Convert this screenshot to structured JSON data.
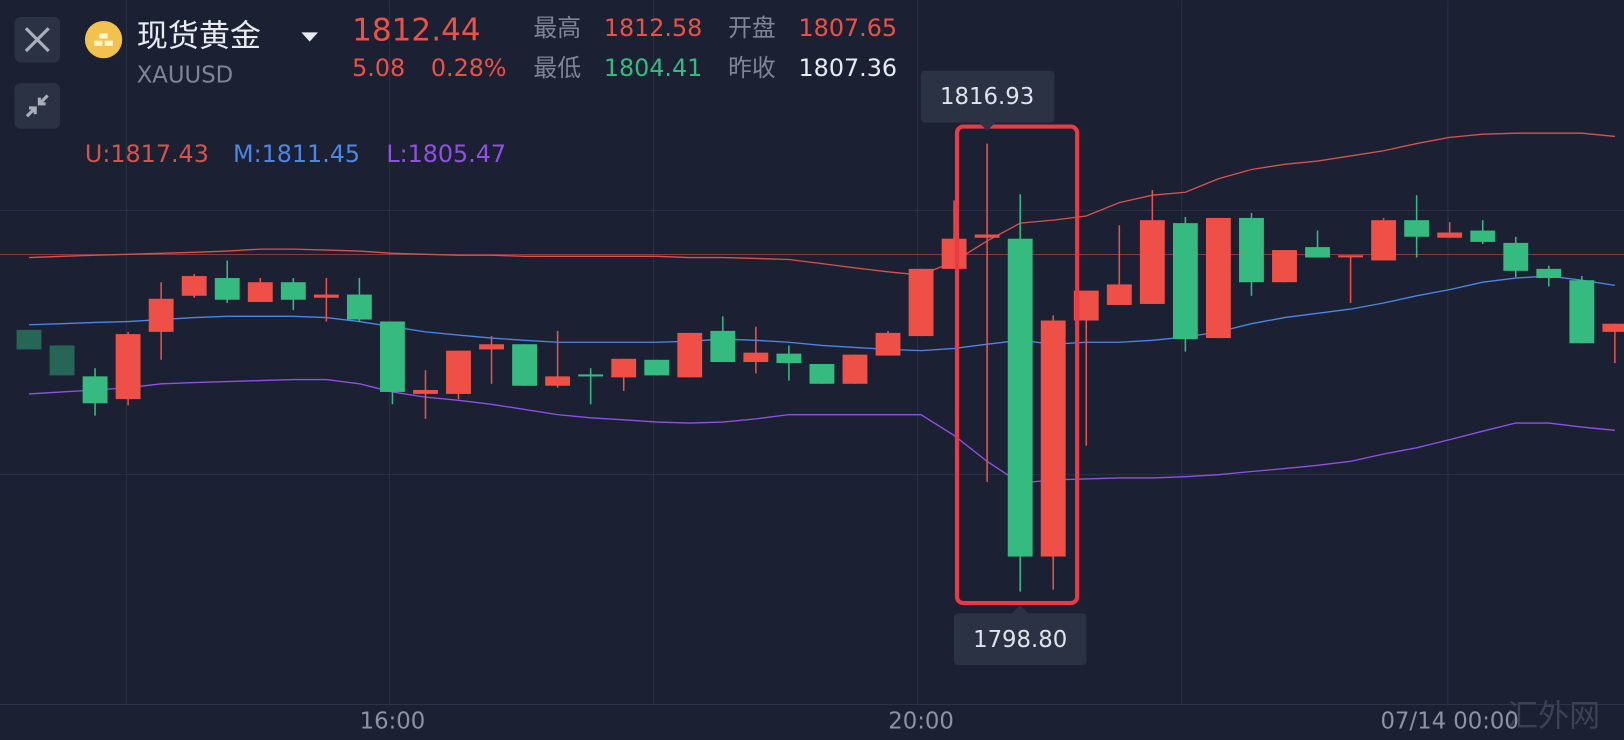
{
  "header": {
    "title": "现货黄金",
    "symbol": "XAUUSD",
    "price": 1812.44,
    "change": 5.08,
    "change_pct": "0.28%",
    "stats": [
      {
        "label": "最高",
        "value": 1812.58
      },
      {
        "label": "开盘",
        "value": 1807.65
      },
      {
        "label": "最低",
        "value": 1804.41
      },
      {
        "label": "昨收",
        "value": 1807.36
      }
    ]
  },
  "chart_data": {
    "type": "candlestick",
    "categories": [
      null,
      null,
      null,
      null,
      null,
      null,
      null,
      null,
      null,
      null,
      null,
      "16:00",
      null,
      null,
      null,
      null,
      null,
      null,
      null,
      null,
      null,
      null,
      null,
      null,
      null,
      null,
      null,
      "20:00",
      null,
      null,
      null,
      null,
      null,
      null,
      null,
      null,
      null,
      null,
      null,
      null,
      null,
      null,
      null,
      "07/14 00:00",
      null,
      null,
      null,
      null,
      null
    ],
    "open": [
      1809.39,
      1808.76,
      1807.51,
      1806.59,
      1809.31,
      1810.77,
      1811.49,
      1810.52,
      1811.32,
      1810.69,
      1810.82,
      1809.73,
      1806.8,
      1806.8,
      1808.6,
      1808.81,
      1807.13,
      1807.59,
      1807.47,
      1808.18,
      1807.47,
      1809.35,
      1808.09,
      1808.43,
      1808.01,
      1807.21,
      1808.35,
      1809.14,
      1811.86,
      1813.12,
      1813.08,
      1800.22,
      1809.77,
      1810.4,
      1810.44,
      1813.71,
      1809.06,
      1813.92,
      1811.32,
      1812.74,
      1812.37,
      1812.2,
      1813.83,
      1813.12,
      1813.41,
      1812.91,
      1811.86,
      1811.4,
      1809.31
    ],
    "high": [
      1809.39,
      1808.76,
      1807.84,
      1809.31,
      1811.32,
      1811.65,
      1812.2,
      1811.49,
      1811.49,
      1811.49,
      1811.49,
      1809.73,
      1807.76,
      1808.55,
      1809.14,
      1808.81,
      1809.35,
      1807.84,
      1808.22,
      1808.18,
      1809.27,
      1809.94,
      1809.52,
      1808.76,
      1808.01,
      1808.39,
      1809.35,
      1811.86,
      1814.63,
      1816.93,
      1814.88,
      1809.98,
      1810.98,
      1813.62,
      1815.05,
      1813.96,
      1813.92,
      1814.12,
      1812.62,
      1813.41,
      1812.41,
      1813.92,
      1814.84,
      1813.75,
      1813.83,
      1813.16,
      1811.99,
      1811.57,
      1809.64
    ],
    "low": [
      1808.6,
      1807.55,
      1805.92,
      1806.34,
      1808.18,
      1810.69,
      1810.48,
      1810.52,
      1810.19,
      1809.73,
      1809.73,
      1806.38,
      1805.79,
      1806.59,
      1807.21,
      1807.13,
      1807.05,
      1806.38,
      1806.92,
      1807.55,
      1807.47,
      1808.09,
      1807.63,
      1807.34,
      1807.21,
      1807.21,
      1808.35,
      1809.14,
      1811.86,
      1803.24,
      1798.8,
      1798.88,
      1804.7,
      1810.4,
      1810.44,
      1808.51,
      1809.06,
      1810.77,
      1811.32,
      1812.32,
      1810.48,
      1812.2,
      1812.32,
      1813.12,
      1812.87,
      1811.53,
      1811.15,
      1808.85,
      1808.05
    ],
    "close": [
      1808.6,
      1807.55,
      1806.42,
      1809.22,
      1810.65,
      1811.57,
      1810.61,
      1811.32,
      1810.61,
      1810.82,
      1809.81,
      1806.88,
      1806.96,
      1808.55,
      1808.81,
      1807.13,
      1807.51,
      1807.51,
      1808.22,
      1807.55,
      1809.27,
      1808.09,
      1808.47,
      1808.05,
      1807.21,
      1808.39,
      1809.27,
      1811.86,
      1813.08,
      1813.25,
      1800.22,
      1809.77,
      1810.98,
      1811.23,
      1813.83,
      1809.02,
      1813.92,
      1811.32,
      1812.62,
      1812.32,
      1812.41,
      1813.83,
      1813.16,
      1813.33,
      1812.95,
      1811.78,
      1811.49,
      1808.85,
      1809.64
    ],
    "up_color": "#ee5047",
    "down_color": "#35bb80",
    "ylim": [
      1797.5,
      1817.7
    ],
    "bands": [
      {
        "label": "U:1817.43",
        "color": "#d9524a",
        "values": [
          1812.32,
          1812.37,
          1812.41,
          1812.45,
          1812.49,
          1812.53,
          1812.58,
          1812.66,
          1812.66,
          1812.62,
          1812.58,
          1812.49,
          1812.45,
          1812.41,
          1812.41,
          1812.37,
          1812.37,
          1812.37,
          1812.37,
          1812.37,
          1812.32,
          1812.32,
          1812.28,
          1812.24,
          1812.07,
          1811.9,
          1811.74,
          1811.61,
          1812.16,
          1812.99,
          1813.71,
          1813.83,
          1814.0,
          1814.54,
          1814.84,
          1814.96,
          1815.51,
          1815.88,
          1816.09,
          1816.22,
          1816.43,
          1816.64,
          1816.93,
          1817.18,
          1817.31,
          1817.35,
          1817.35,
          1817.35,
          1817.22
        ]
      },
      {
        "label": "M:1811.45",
        "color": "#4b86e8",
        "values": [
          1809.6,
          1809.64,
          1809.69,
          1809.73,
          1809.81,
          1809.89,
          1809.94,
          1809.94,
          1809.94,
          1809.89,
          1809.73,
          1809.52,
          1809.31,
          1809.18,
          1809.06,
          1808.97,
          1808.89,
          1808.89,
          1808.89,
          1808.89,
          1808.93,
          1809.02,
          1808.97,
          1808.89,
          1808.76,
          1808.68,
          1808.6,
          1808.55,
          1808.64,
          1808.81,
          1808.97,
          1808.81,
          1808.89,
          1808.89,
          1808.97,
          1809.1,
          1809.31,
          1809.64,
          1809.89,
          1810.06,
          1810.23,
          1810.48,
          1810.77,
          1811.02,
          1811.32,
          1811.49,
          1811.57,
          1811.4,
          1811.19
        ]
      },
      {
        "label": "L:1805.47",
        "color": "#9050e8",
        "values": [
          1806.8,
          1806.88,
          1806.96,
          1807.05,
          1807.21,
          1807.26,
          1807.3,
          1807.34,
          1807.38,
          1807.38,
          1807.21,
          1806.88,
          1806.67,
          1806.54,
          1806.38,
          1806.17,
          1805.96,
          1805.83,
          1805.75,
          1805.66,
          1805.62,
          1805.66,
          1805.79,
          1805.96,
          1805.96,
          1805.96,
          1805.96,
          1805.96,
          1805.12,
          1804.07,
          1803.19,
          1803.32,
          1803.36,
          1803.4,
          1803.4,
          1803.45,
          1803.53,
          1803.66,
          1803.78,
          1803.91,
          1804.07,
          1804.37,
          1804.62,
          1804.95,
          1805.29,
          1805.62,
          1805.62,
          1805.46,
          1805.33
        ]
      }
    ],
    "max_label": "1816.93",
    "min_label": "1798.80"
  },
  "watermark": "汇外网"
}
